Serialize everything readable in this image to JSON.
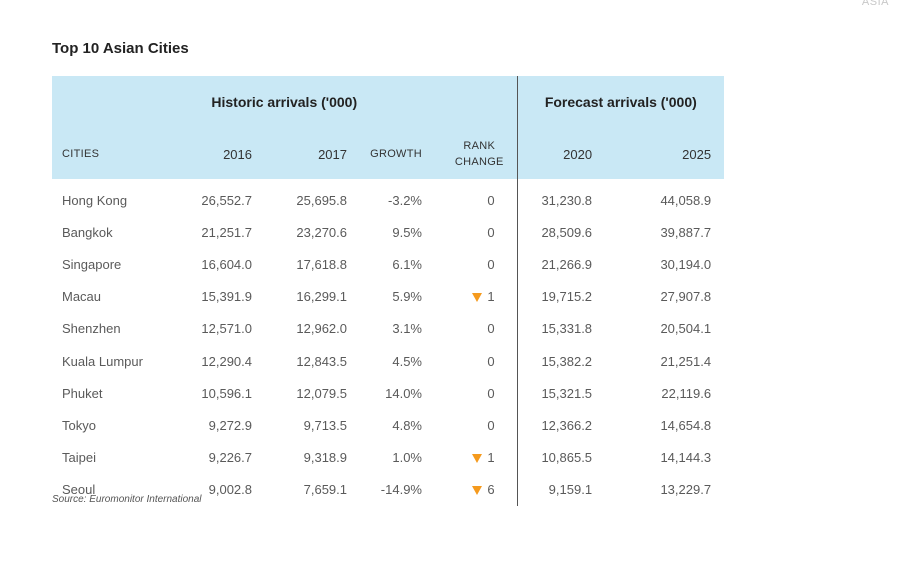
{
  "corner_tag": "ASIA",
  "title": "Top 10 Asian Cities",
  "groups": {
    "historic": "Historic arrivals ('000)",
    "forecast": "Forecast arrivals ('000)"
  },
  "columns": {
    "cities": "CITIES",
    "y2016": "2016",
    "y2017": "2017",
    "growth": "GROWTH",
    "rank_change_1": "RANK",
    "rank_change_2": "CHANGE",
    "y2020": "2020",
    "y2025": "2025"
  },
  "rows": [
    {
      "city": "Hong Kong",
      "y2016": "26,552.7",
      "y2017": "25,695.8",
      "growth": "-3.2%",
      "rank": "0",
      "down": false,
      "y2020": "31,230.8",
      "y2025": "44,058.9"
    },
    {
      "city": "Bangkok",
      "y2016": "21,251.7",
      "y2017": "23,270.6",
      "growth": "9.5%",
      "rank": "0",
      "down": false,
      "y2020": "28,509.6",
      "y2025": "39,887.7"
    },
    {
      "city": "Singapore",
      "y2016": "16,604.0",
      "y2017": "17,618.8",
      "growth": "6.1%",
      "rank": "0",
      "down": false,
      "y2020": "21,266.9",
      "y2025": "30,194.0"
    },
    {
      "city": "Macau",
      "y2016": "15,391.9",
      "y2017": "16,299.1",
      "growth": "5.9%",
      "rank": "1",
      "down": true,
      "y2020": "19,715.2",
      "y2025": "27,907.8"
    },
    {
      "city": "Shenzhen",
      "y2016": "12,571.0",
      "y2017": "12,962.0",
      "growth": "3.1%",
      "rank": "0",
      "down": false,
      "y2020": "15,331.8",
      "y2025": "20,504.1"
    },
    {
      "city": "Kuala Lumpur",
      "y2016": "12,290.4",
      "y2017": "12,843.5",
      "growth": "4.5%",
      "rank": "0",
      "down": false,
      "y2020": "15,382.2",
      "y2025": "21,251.4"
    },
    {
      "city": "Phuket",
      "y2016": "10,596.1",
      "y2017": "12,079.5",
      "growth": "14.0%",
      "rank": "0",
      "down": false,
      "y2020": "15,321.5",
      "y2025": "22,119.6"
    },
    {
      "city": "Tokyo",
      "y2016": "9,272.9",
      "y2017": "9,713.5",
      "growth": "4.8%",
      "rank": "0",
      "down": false,
      "y2020": "12,366.2",
      "y2025": "14,654.8"
    },
    {
      "city": "Taipei",
      "y2016": "9,226.7",
      "y2017": "9,318.9",
      "growth": "1.0%",
      "rank": "1",
      "down": true,
      "y2020": "10,865.5",
      "y2025": "14,144.3"
    },
    {
      "city": "Seoul",
      "y2016": "9,002.8",
      "y2017": "7,659.1",
      "growth": "-14.9%",
      "rank": "6",
      "down": true,
      "y2020": "9,159.1",
      "y2025": "13,229.7"
    }
  ],
  "source": "Source: Euromonitor International",
  "colors": {
    "header_bg": "#c9e8f5",
    "down_arrow": "#f59a1d"
  }
}
